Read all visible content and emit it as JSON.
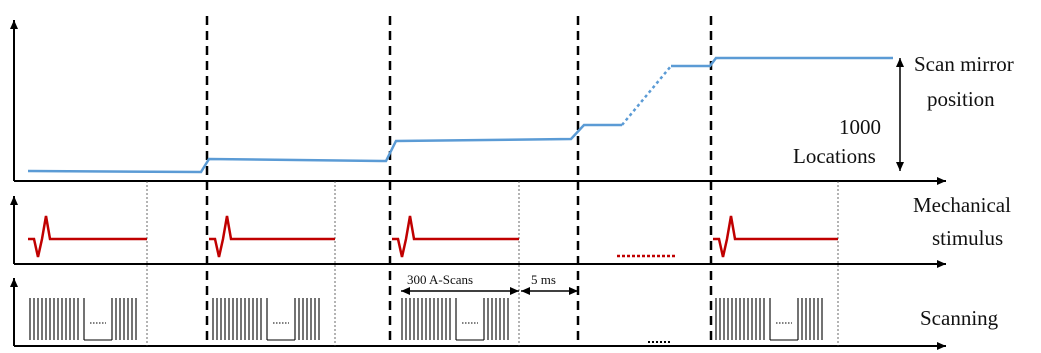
{
  "labels": {
    "scan_mirror_line1": "Scan mirror",
    "scan_mirror_line2": "position",
    "locations_number": "1000",
    "locations_word": "Locations",
    "mechanical_line1": "Mechanical",
    "mechanical_line2": "stimulus",
    "scanning": "Scanning",
    "a_scans": "300 A-Scans",
    "delay": "5 ms"
  },
  "colors": {
    "mirror_trace": "#5b9bd5",
    "stimulus": "#c00000",
    "axes": "#000000",
    "dashed_markers": "#000000"
  }
}
